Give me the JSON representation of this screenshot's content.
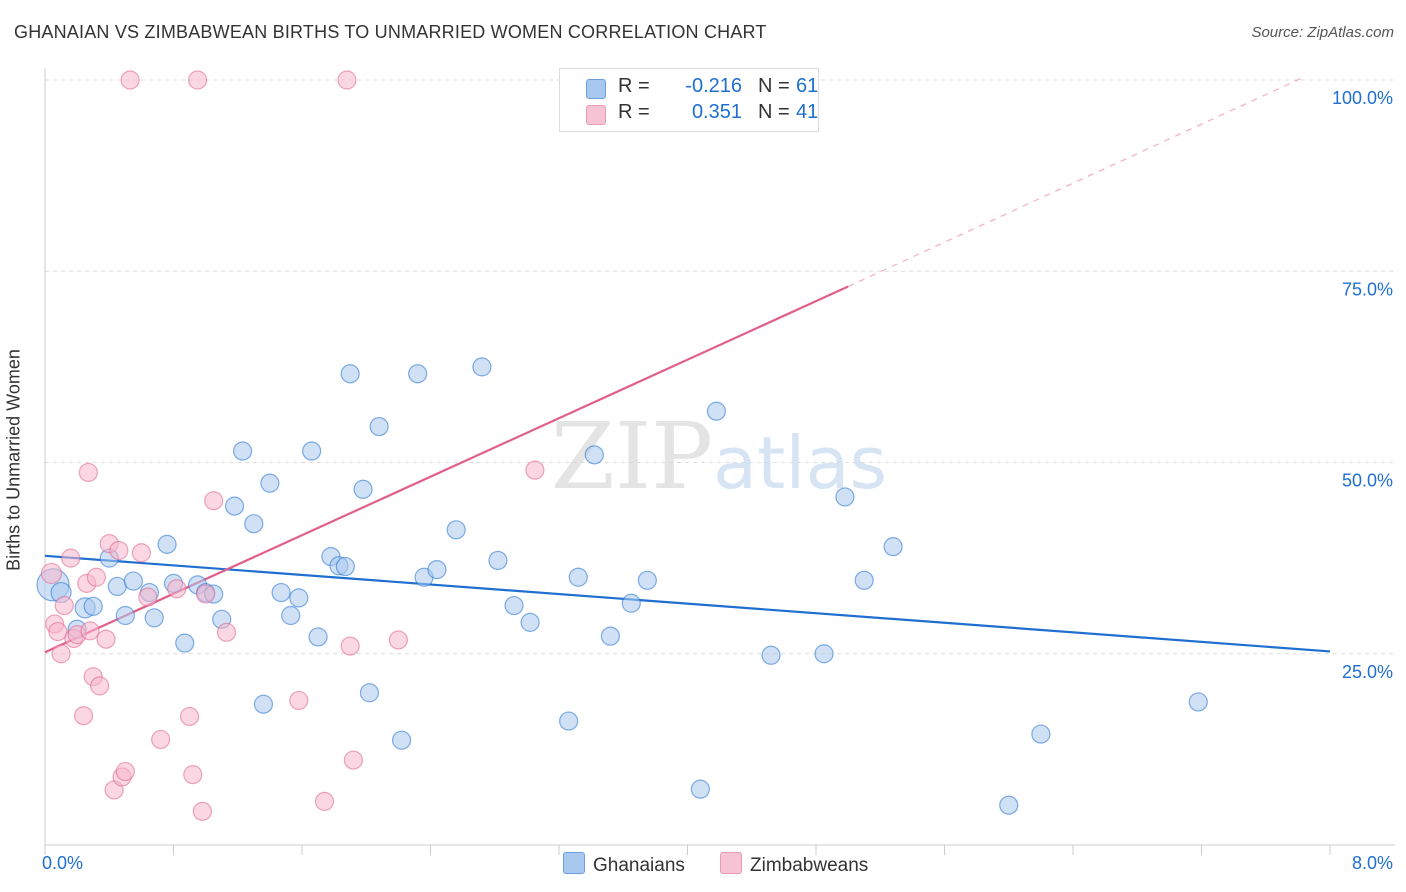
{
  "chart_data": {
    "type": "scatter",
    "title": "GHANAIAN VS ZIMBABWEAN BIRTHS TO UNMARRIED WOMEN CORRELATION CHART",
    "source": "Source: ZipAtlas.com",
    "ylabel": "Births to Unmarried Women",
    "xlim": [
      0,
      8
    ],
    "ylim": [
      0,
      100
    ],
    "x_tick_labels": [
      {
        "value": 0,
        "label": "0.0%"
      },
      {
        "value": 8,
        "label": "8.0%"
      }
    ],
    "y_tick_labels": [
      {
        "value": 25,
        "label": "25.0%"
      },
      {
        "value": 50,
        "label": "50.0%"
      },
      {
        "value": 75,
        "label": "75.0%"
      },
      {
        "value": 100,
        "label": "100.0%"
      }
    ],
    "grid_y": [
      25,
      50,
      75,
      100
    ],
    "x_ticks": [
      0,
      0.8,
      1.6,
      2.4,
      3.2,
      4.0,
      4.8,
      5.6,
      6.4,
      7.2,
      8.0
    ],
    "watermark": {
      "zip": "ZIP",
      "atlas": "atlas"
    },
    "legend": {
      "r_label": "R =",
      "n_label": "N =",
      "entries": [
        {
          "name": "Ghanaians",
          "r": "-0.216",
          "n": "61"
        },
        {
          "name": "Zimbabweans",
          "r": "0.351",
          "n": "41"
        }
      ]
    },
    "series": [
      {
        "name": "Ghanaians",
        "color": "#1f6fd1",
        "fill": "#a9c8ef",
        "trend": {
          "x0": 0,
          "y0": 37.8,
          "x1": 8,
          "y1": 25.3
        },
        "points": [
          [
            0.05,
            34.0,
            16
          ],
          [
            0.1,
            33.0,
            10
          ],
          [
            0.25,
            31.0,
            10
          ],
          [
            0.3,
            31.2,
            9
          ],
          [
            0.2,
            28.2,
            9
          ],
          [
            0.4,
            37.5,
            9
          ],
          [
            0.45,
            33.8,
            9
          ],
          [
            0.5,
            30.0,
            9
          ],
          [
            0.55,
            34.5,
            9
          ],
          [
            0.65,
            33.0,
            9
          ],
          [
            0.68,
            29.7,
            9
          ],
          [
            0.76,
            39.3,
            9
          ],
          [
            0.8,
            34.2,
            9
          ],
          [
            0.87,
            26.4,
            9
          ],
          [
            0.95,
            34.0,
            9
          ],
          [
            1.0,
            33.0,
            9
          ],
          [
            1.05,
            32.8,
            9
          ],
          [
            1.1,
            29.5,
            9
          ],
          [
            1.18,
            44.3,
            9
          ],
          [
            1.23,
            51.5,
            9
          ],
          [
            1.3,
            42.0,
            9
          ],
          [
            1.36,
            18.4,
            9
          ],
          [
            1.4,
            47.3,
            9
          ],
          [
            1.47,
            33.0,
            9
          ],
          [
            1.53,
            30.0,
            9
          ],
          [
            1.58,
            32.3,
            9
          ],
          [
            1.66,
            51.5,
            9
          ],
          [
            1.7,
            27.2,
            9
          ],
          [
            1.78,
            37.7,
            9
          ],
          [
            1.83,
            36.5,
            9
          ],
          [
            1.87,
            36.4,
            9
          ],
          [
            1.9,
            61.6,
            9
          ],
          [
            1.98,
            46.5,
            9
          ],
          [
            2.02,
            19.9,
            9
          ],
          [
            2.08,
            54.7,
            9
          ],
          [
            2.22,
            13.7,
            9
          ],
          [
            2.32,
            61.6,
            9
          ],
          [
            2.36,
            35.0,
            9
          ],
          [
            2.44,
            36.0,
            9
          ],
          [
            2.56,
            41.2,
            9
          ],
          [
            2.72,
            62.5,
            9
          ],
          [
            2.82,
            37.2,
            9
          ],
          [
            2.92,
            31.3,
            9
          ],
          [
            3.02,
            29.1,
            9
          ],
          [
            3.26,
            16.2,
            9
          ],
          [
            3.32,
            35.0,
            9
          ],
          [
            3.42,
            51.0,
            9
          ],
          [
            3.52,
            27.3,
            9
          ],
          [
            3.65,
            31.6,
            9
          ],
          [
            3.75,
            34.6,
            9
          ],
          [
            4.08,
            7.3,
            9
          ],
          [
            4.18,
            56.7,
            9
          ],
          [
            4.52,
            24.8,
            9
          ],
          [
            4.85,
            25.0,
            9
          ],
          [
            4.98,
            45.5,
            9
          ],
          [
            5.1,
            34.6,
            9
          ],
          [
            5.28,
            39.0,
            9
          ],
          [
            6.0,
            5.2,
            9
          ],
          [
            6.2,
            14.5,
            9
          ],
          [
            7.18,
            18.7,
            9
          ]
        ]
      },
      {
        "name": "Zimbabweans",
        "color": "#e0608a",
        "fill": "#f5b7cc",
        "trend": {
          "x0": 0,
          "y0": 25.2,
          "x1": 5.0,
          "y1": 73.0,
          "dash_to": {
            "x": 7.85,
            "y": 100.5
          }
        },
        "points": [
          [
            0.04,
            35.5,
            10
          ],
          [
            0.06,
            28.9,
            9
          ],
          [
            0.08,
            27.9,
            9
          ],
          [
            0.1,
            25.0,
            9
          ],
          [
            0.12,
            31.3,
            9
          ],
          [
            0.16,
            37.5,
            9
          ],
          [
            0.18,
            27.0,
            9
          ],
          [
            0.2,
            27.5,
            9
          ],
          [
            0.24,
            16.9,
            9
          ],
          [
            0.26,
            34.2,
            9
          ],
          [
            0.27,
            48.7,
            9
          ],
          [
            0.28,
            28.0,
            9
          ],
          [
            0.3,
            22.0,
            9
          ],
          [
            0.32,
            35.0,
            9
          ],
          [
            0.34,
            20.8,
            9
          ],
          [
            0.38,
            26.9,
            9
          ],
          [
            0.4,
            39.4,
            9
          ],
          [
            0.43,
            7.2,
            9
          ],
          [
            0.46,
            38.5,
            9
          ],
          [
            0.48,
            8.9,
            9
          ],
          [
            0.5,
            9.6,
            9
          ],
          [
            0.53,
            100.0,
            9
          ],
          [
            0.6,
            38.2,
            9
          ],
          [
            0.64,
            32.4,
            9
          ],
          [
            0.72,
            13.8,
            9
          ],
          [
            0.82,
            33.5,
            9
          ],
          [
            0.9,
            16.8,
            9
          ],
          [
            0.92,
            9.2,
            9
          ],
          [
            0.95,
            100.0,
            9
          ],
          [
            0.98,
            4.4,
            9
          ],
          [
            1.0,
            32.8,
            9
          ],
          [
            1.05,
            45.0,
            9
          ],
          [
            1.13,
            27.8,
            9
          ],
          [
            1.58,
            18.9,
            9
          ],
          [
            1.74,
            5.7,
            9
          ],
          [
            1.88,
            100.0,
            9
          ],
          [
            1.9,
            26.0,
            9
          ],
          [
            1.92,
            11.1,
            9
          ],
          [
            2.2,
            26.8,
            9
          ],
          [
            3.05,
            49.0,
            9
          ]
        ]
      }
    ]
  }
}
